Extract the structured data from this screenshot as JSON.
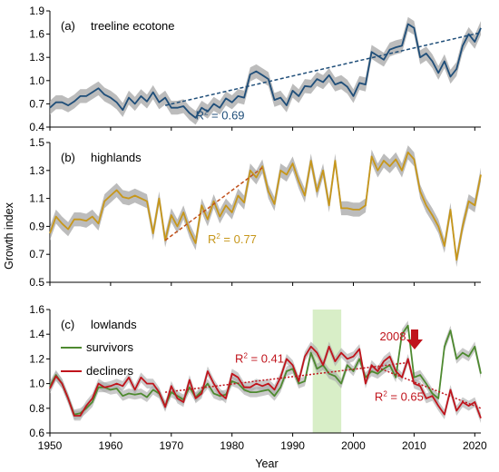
{
  "figure": {
    "shared_xlabel": "Year",
    "shared_ylabel": "Growth index",
    "x_ticks": [
      1950,
      1960,
      1970,
      1980,
      1990,
      2000,
      2010,
      2020
    ]
  },
  "chart_data": [
    {
      "type": "line",
      "panel": "(a)",
      "title": "treeline ecotone",
      "xlim": [
        1950,
        2021
      ],
      "ylim": [
        0.4,
        1.9
      ],
      "yticks": [
        0.4,
        0.7,
        1.0,
        1.3,
        1.6,
        1.9
      ],
      "ytick_labels": [
        "0.4",
        "0.7",
        "1.0",
        "1.3",
        "1.6",
        "1.9"
      ],
      "band_width": 0.09,
      "series": [
        {
          "color": "#1f4e79",
          "x": [
            1950,
            1951,
            1952,
            1953,
            1954,
            1955,
            1956,
            1957,
            1958,
            1959,
            1960,
            1961,
            1962,
            1963,
            1964,
            1965,
            1966,
            1967,
            1968,
            1969,
            1970,
            1971,
            1972,
            1973,
            1974,
            1975,
            1976,
            1977,
            1978,
            1979,
            1980,
            1981,
            1982,
            1983,
            1984,
            1985,
            1986,
            1987,
            1988,
            1989,
            1990,
            1991,
            1992,
            1993,
            1994,
            1995,
            1996,
            1997,
            1998,
            1999,
            2000,
            2001,
            2002,
            2003,
            2004,
            2005,
            2006,
            2007,
            2008,
            2009,
            2010,
            2011,
            2012,
            2013,
            2014,
            2015,
            2016,
            2017,
            2018,
            2019,
            2020,
            2021
          ],
          "values": [
            0.65,
            0.72,
            0.72,
            0.68,
            0.73,
            0.8,
            0.8,
            0.85,
            0.9,
            0.82,
            0.78,
            0.72,
            0.62,
            0.78,
            0.7,
            0.8,
            0.73,
            0.85,
            0.72,
            0.78,
            0.65,
            0.65,
            0.67,
            0.58,
            0.52,
            0.65,
            0.6,
            0.7,
            0.65,
            0.77,
            0.72,
            0.8,
            0.78,
            1.08,
            1.12,
            1.07,
            1.02,
            0.75,
            0.78,
            0.68,
            0.87,
            0.8,
            0.93,
            0.92,
            1.02,
            0.98,
            1.07,
            0.95,
            0.98,
            0.92,
            0.8,
            0.97,
            0.95,
            1.37,
            1.32,
            1.27,
            1.4,
            1.43,
            1.45,
            1.73,
            1.68,
            1.3,
            1.35,
            1.25,
            1.1,
            1.25,
            1.05,
            1.15,
            1.45,
            1.6,
            1.5,
            1.68
          ]
        }
      ],
      "trend": {
        "x": [
          1969,
          2021
        ],
        "y": [
          0.68,
          1.62
        ],
        "color": "#1f4e79"
      },
      "annotations": [
        {
          "text": "R² = 0.69",
          "x": 1974,
          "y": 0.5,
          "color": "#1f4e79"
        }
      ]
    },
    {
      "type": "line",
      "panel": "(b)",
      "title": "highlands",
      "xlim": [
        1950,
        2021
      ],
      "ylim": [
        0.5,
        1.5
      ],
      "yticks": [
        0.5,
        0.7,
        0.9,
        1.1,
        1.3,
        1.5
      ],
      "ytick_labels": [
        "0.5",
        "0.7",
        "0.9",
        "1.1",
        "1.3",
        "1.5"
      ],
      "band_width": 0.05,
      "series": [
        {
          "color": "#c7971b",
          "x": [
            1950,
            1951,
            1952,
            1953,
            1954,
            1955,
            1956,
            1957,
            1958,
            1959,
            1960,
            1961,
            1962,
            1963,
            1964,
            1965,
            1966,
            1967,
            1968,
            1969,
            1970,
            1971,
            1972,
            1973,
            1974,
            1975,
            1976,
            1977,
            1978,
            1979,
            1980,
            1981,
            1982,
            1983,
            1984,
            1985,
            1986,
            1987,
            1988,
            1989,
            1990,
            1991,
            1992,
            1993,
            1994,
            1995,
            1996,
            1997,
            1998,
            1999,
            2000,
            2001,
            2002,
            2003,
            2004,
            2005,
            2006,
            2007,
            2008,
            2009,
            2010,
            2011,
            2012,
            2013,
            2014,
            2015,
            2016,
            2017,
            2018,
            2019,
            2020,
            2021
          ],
          "values": [
            0.85,
            0.97,
            0.92,
            0.88,
            0.95,
            0.95,
            0.94,
            0.97,
            0.92,
            1.08,
            1.12,
            1.16,
            1.11,
            1.1,
            1.12,
            1.1,
            1.08,
            0.85,
            1.1,
            0.8,
            0.98,
            0.9,
            1.0,
            0.87,
            0.78,
            1.05,
            0.95,
            1.08,
            0.97,
            1.05,
            1.0,
            1.12,
            1.07,
            1.3,
            1.25,
            1.33,
            1.15,
            1.06,
            1.3,
            1.27,
            1.35,
            1.22,
            1.12,
            1.37,
            1.15,
            1.3,
            1.05,
            1.37,
            1.03,
            1.03,
            1.02,
            1.02,
            1.05,
            1.4,
            1.3,
            1.37,
            1.33,
            1.38,
            1.3,
            1.43,
            1.38,
            1.15,
            1.05,
            0.98,
            0.9,
            0.76,
            1.02,
            0.66,
            0.9,
            1.08,
            1.05,
            1.27
          ]
        }
      ],
      "trend": {
        "x": [
          1969,
          1985
        ],
        "y": [
          0.8,
          1.32
        ],
        "color": "#c0501a"
      },
      "annotations": [
        {
          "text": "R² = 0.77",
          "x": 1976,
          "y": 0.78,
          "color": "#c7971b"
        }
      ]
    },
    {
      "type": "line",
      "panel": "(c)",
      "title": "lowlands",
      "xlim": [
        1950,
        2021
      ],
      "ylim": [
        0.6,
        1.6
      ],
      "yticks": [
        0.6,
        0.8,
        1.0,
        1.2,
        1.4,
        1.6
      ],
      "ytick_labels": [
        "0.6",
        "0.8",
        "1.0",
        "1.2",
        "1.4",
        "1.6"
      ],
      "band_width": 0.04,
      "shaded_region": {
        "x": [
          1993.3,
          1998
        ],
        "color": "#d8eec7"
      },
      "legend": {
        "position": "upper-left"
      },
      "series": [
        {
          "name": "survivors",
          "color": "#4e8a30",
          "x": [
            1950,
            1951,
            1952,
            1953,
            1954,
            1955,
            1956,
            1957,
            1958,
            1959,
            1960,
            1961,
            1962,
            1963,
            1964,
            1965,
            1966,
            1967,
            1968,
            1969,
            1970,
            1971,
            1972,
            1973,
            1974,
            1975,
            1976,
            1977,
            1978,
            1979,
            1980,
            1981,
            1982,
            1983,
            1984,
            1985,
            1986,
            1987,
            1988,
            1989,
            1990,
            1991,
            1992,
            1993,
            1994,
            1995,
            1996,
            1997,
            1998,
            1999,
            2000,
            2001,
            2002,
            2003,
            2004,
            2005,
            2006,
            2007,
            2008,
            2009,
            2010,
            2011,
            2012,
            2013,
            2014,
            2015,
            2016,
            2017,
            2018,
            2019,
            2020,
            2021
          ],
          "values": [
            0.98,
            1.07,
            1.0,
            0.88,
            0.75,
            0.76,
            0.8,
            0.85,
            0.97,
            0.97,
            0.95,
            0.96,
            0.9,
            0.92,
            0.91,
            0.92,
            0.89,
            0.95,
            0.92,
            0.82,
            0.93,
            0.9,
            0.87,
            0.97,
            0.89,
            0.94,
            1.0,
            0.92,
            0.9,
            0.91,
            1.02,
            1.0,
            0.95,
            0.93,
            0.93,
            0.94,
            0.95,
            0.9,
            0.97,
            1.1,
            1.12,
            1.0,
            1.02,
            1.25,
            1.12,
            1.15,
            1.08,
            1.06,
            1.0,
            1.15,
            1.1,
            1.2,
            1.05,
            1.1,
            1.08,
            1.12,
            1.15,
            1.05,
            1.4,
            1.47,
            1.05,
            1.07,
            1.0,
            0.92,
            0.88,
            1.3,
            1.43,
            1.2,
            1.25,
            1.22,
            1.3,
            1.08
          ]
        },
        {
          "name": "decliners",
          "color": "#c0141c",
          "x": [
            1950,
            1951,
            1952,
            1953,
            1954,
            1955,
            1956,
            1957,
            1958,
            1959,
            1960,
            1961,
            1962,
            1963,
            1964,
            1965,
            1966,
            1967,
            1968,
            1969,
            1970,
            1971,
            1972,
            1973,
            1974,
            1975,
            1976,
            1977,
            1978,
            1979,
            1980,
            1981,
            1982,
            1983,
            1984,
            1985,
            1986,
            1987,
            1988,
            1989,
            1990,
            1991,
            1992,
            1993,
            1994,
            1995,
            1996,
            1997,
            1998,
            1999,
            2000,
            2001,
            2002,
            2003,
            2004,
            2005,
            2006,
            2007,
            2008,
            2009,
            2010,
            2011,
            2012,
            2013,
            2014,
            2015,
            2016,
            2017,
            2018,
            2019,
            2020,
            2021
          ],
          "values": [
            0.96,
            1.06,
            1.0,
            0.88,
            0.74,
            0.74,
            0.82,
            0.88,
            1.0,
            0.97,
            0.98,
            1.0,
            0.98,
            1.05,
            0.95,
            1.05,
            1.0,
            1.0,
            0.93,
            0.81,
            0.98,
            0.88,
            0.85,
            1.03,
            0.88,
            0.92,
            1.1,
            1.0,
            0.92,
            0.88,
            1.08,
            1.05,
            0.97,
            0.97,
            1.0,
            0.98,
            1.0,
            0.95,
            1.05,
            1.2,
            1.15,
            1.02,
            1.22,
            1.3,
            1.25,
            1.15,
            1.3,
            1.18,
            1.25,
            1.2,
            1.22,
            1.28,
            1.0,
            1.15,
            1.1,
            1.18,
            1.22,
            1.1,
            1.05,
            1.2,
            1.0,
            0.98,
            0.88,
            0.9,
            0.82,
            0.75,
            0.95,
            0.78,
            0.85,
            0.82,
            0.85,
            0.72
          ]
        }
      ],
      "trends": [
        {
          "x": [
            1969,
            2009
          ],
          "y": [
            0.93,
            1.17
          ],
          "color": "#c0141c"
        },
        {
          "x": [
            2004,
            2021
          ],
          "y": [
            1.13,
            0.8
          ],
          "color": "#c0141c"
        }
      ],
      "annotations": [
        {
          "text": "R² = 0.41",
          "x": 1980.5,
          "y": 1.17,
          "color": "#c0141c"
        },
        {
          "text": "R² = 0.65",
          "x": 2003.5,
          "y": 0.86,
          "color": "#c0141c"
        },
        {
          "text": "2008",
          "x": 2006.5,
          "y": 1.35,
          "color": "#c0141c",
          "arrow": true
        }
      ]
    }
  ]
}
